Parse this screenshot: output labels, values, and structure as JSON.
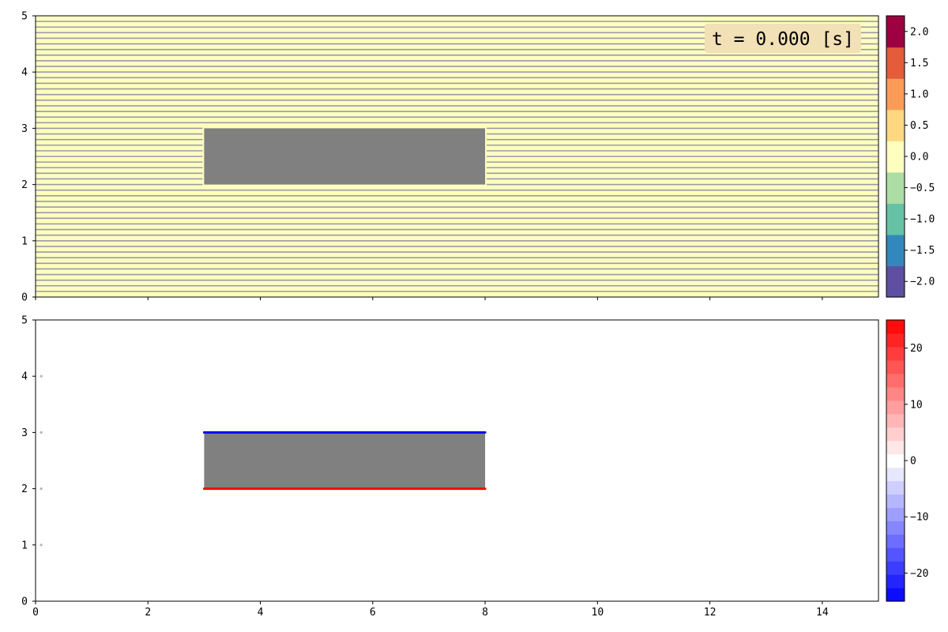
{
  "chart_data": [
    {
      "type": "heatmap",
      "title": "",
      "xlabel": "",
      "ylabel": "",
      "xlim": [
        0,
        15
      ],
      "ylim": [
        0,
        5
      ],
      "x_ticks": [
        "0",
        "2",
        "4",
        "6",
        "8",
        "10",
        "12",
        "14"
      ],
      "x_tick_values": [
        0,
        2,
        4,
        6,
        8,
        10,
        12,
        14
      ],
      "x_tick_labels_shown": false,
      "y_ticks": [
        "0",
        "1",
        "2",
        "3",
        "4",
        "5"
      ],
      "y_tick_values": [
        0,
        1,
        2,
        3,
        4,
        5
      ],
      "field_value": 0.0,
      "field_color": "#fefebf",
      "streamline_color": "#9a9aaa",
      "streamline_spacing": 0.1,
      "obstacle": {
        "x": [
          3,
          8
        ],
        "y": [
          2,
          3
        ],
        "color": "#808080"
      },
      "annotation": "t = 0.000 [s]",
      "annotation_bg": "#f2e0b6",
      "colorbar": {
        "min": -2.25,
        "max": 2.25,
        "colormap": "Spectral_r",
        "ticks": [
          "−2.0",
          "−1.5",
          "−1.0",
          "−0.5",
          "0.0",
          "0.5",
          "1.0",
          "1.5",
          "2.0"
        ],
        "tick_values": [
          -2.0,
          -1.5,
          -1.0,
          -0.5,
          0.0,
          0.5,
          1.0,
          1.5,
          2.0
        ],
        "levels": 9,
        "colors": [
          "#5e4fa2",
          "#3288bd",
          "#66c2a5",
          "#abdda4",
          "#fefebf",
          "#fdd880",
          "#fa9c58",
          "#e45c3a",
          "#9e0142"
        ]
      }
    },
    {
      "type": "scatter",
      "title": "",
      "xlabel": "",
      "ylabel": "",
      "xlim": [
        0,
        15
      ],
      "ylim": [
        0,
        5
      ],
      "x_ticks": [
        "0",
        "2",
        "4",
        "6",
        "8",
        "10",
        "12",
        "14"
      ],
      "x_tick_values": [
        0,
        2,
        4,
        6,
        8,
        10,
        12,
        14
      ],
      "y_ticks": [
        "0",
        "1",
        "2",
        "3",
        "4",
        "5"
      ],
      "y_tick_values": [
        0,
        1,
        2,
        3,
        4,
        5
      ],
      "obstacle": {
        "x": [
          3,
          8
        ],
        "y": [
          2,
          3
        ],
        "color": "#808080"
      },
      "edges": [
        {
          "name": "top",
          "x": [
            3,
            8
          ],
          "y": 3,
          "value": -25,
          "color": "#0000ff"
        },
        {
          "name": "bottom",
          "x": [
            3,
            8
          ],
          "y": 2,
          "value": 25,
          "color": "#ff0000"
        }
      ],
      "markers": [
        {
          "x": 0.1,
          "y": 1
        },
        {
          "x": 0.1,
          "y": 2
        },
        {
          "x": 0.1,
          "y": 3
        },
        {
          "x": 0.1,
          "y": 4
        }
      ],
      "marker_color": "#b5b5b5",
      "colorbar": {
        "min": -25,
        "max": 25,
        "colormap": "bwr",
        "ticks": [
          "−20",
          "−10",
          "0",
          "10",
          "20"
        ],
        "tick_values": [
          -20,
          -10,
          0,
          10,
          20
        ],
        "levels": 21
      }
    }
  ]
}
